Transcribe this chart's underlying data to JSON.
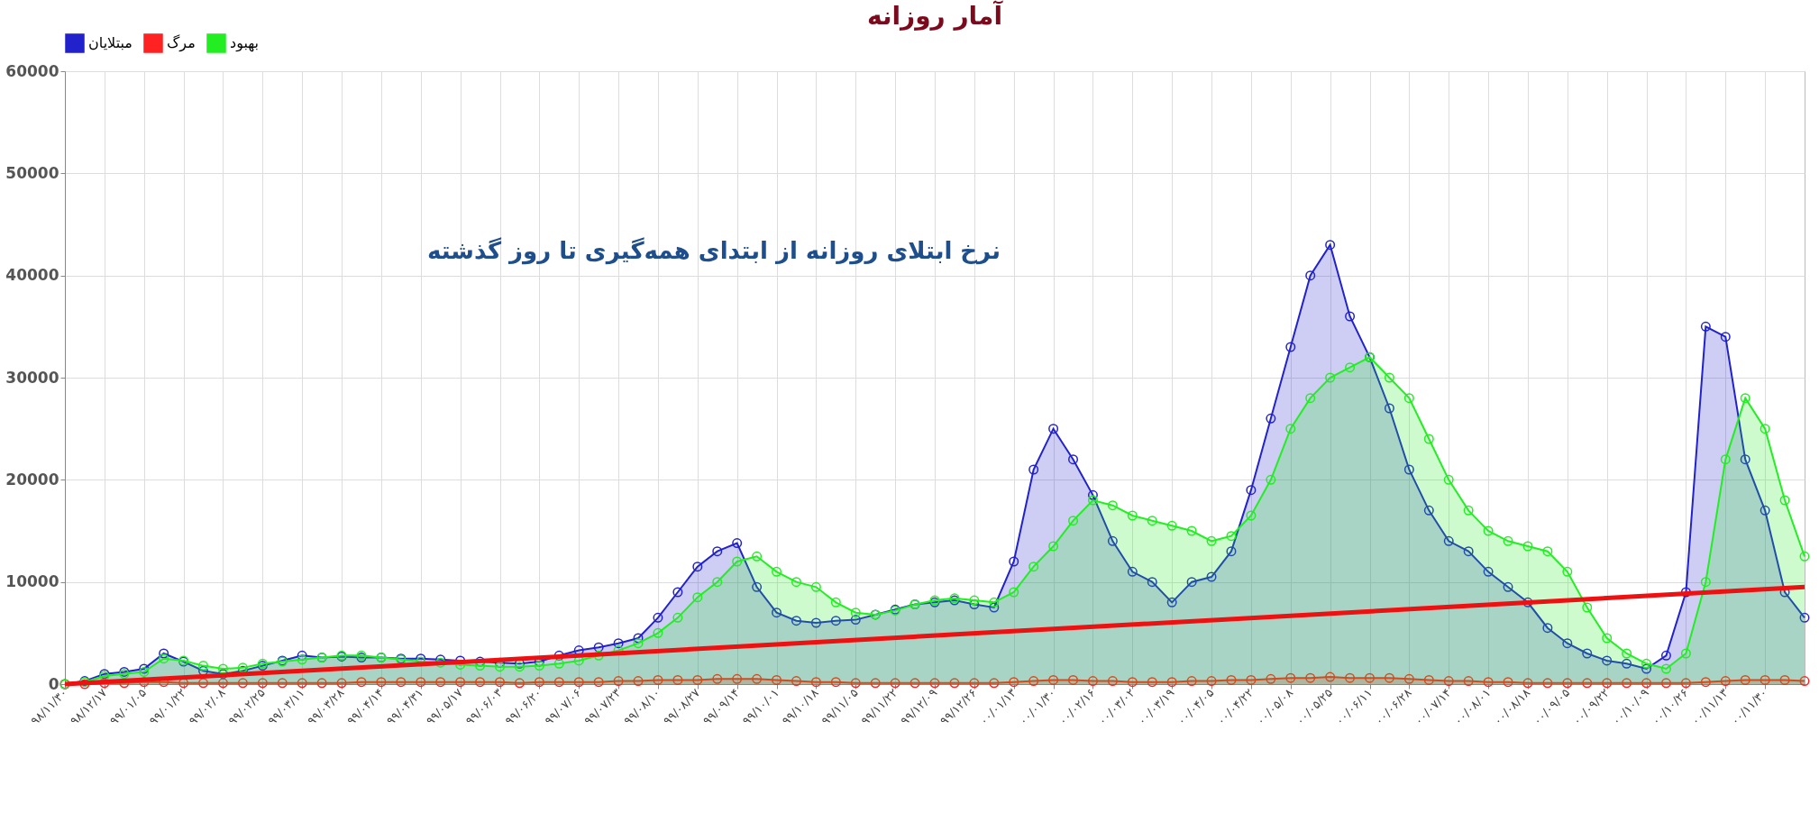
{
  "chart_data": {
    "type": "area",
    "title": "آمار روزانه",
    "annotations": [
      "نرخ ابتلای روزانه از ابتدای همه‌گیری تا روز گذشته"
    ],
    "categories": [
      "۹۸/۱۱/۳۰",
      null,
      "۹۸/۱۲/۱۷",
      null,
      "۹۹/۰۱/۰۵",
      null,
      "۹۹/۰۱/۲۲",
      null,
      "۹۹/۰۲/۰۸",
      null,
      "۹۹/۰۲/۲۵",
      null,
      "۹۹/۰۳/۱۱",
      null,
      "۹۹/۰۳/۲۸",
      null,
      "۹۹/۰۴/۱۴",
      null,
      "۹۹/۰۴/۳۱",
      null,
      "۹۹/۰۵/۱۷",
      null,
      "۹۹/۰۶/۰۳",
      null,
      "۹۹/۰۶/۲۰",
      null,
      "۹۹/۰۷/۰۶",
      null,
      "۹۹/۰۷/۲۳",
      null,
      "۹۹/۰۸/۱۰",
      null,
      "۹۹/۰۸/۲۷",
      null,
      "۹۹/۰۹/۱۴",
      null,
      "۹۹/۱۰/۰۱",
      null,
      "۹۹/۱۰/۱۸",
      null,
      "۹۹/۱۱/۰۵",
      null,
      "۹۹/۱۱/۲۲",
      null,
      "۹۹/۱۲/۰۹",
      null,
      "۹۹/۱۲/۲۶",
      null,
      "۰۰/۰۱/۱۳",
      null,
      "۰۰/۰۱/۳۰",
      null,
      "۰۰/۰۲/۱۶",
      null,
      "۰۰/۰۳/۰۲",
      null,
      "۰۰/۰۳/۱۹",
      null,
      "۰۰/۰۴/۰۵",
      null,
      "۰۰/۰۴/۲۲",
      null,
      "۰۰/۰۵/۰۸",
      null,
      "۰۰/۰۵/۲۵",
      null,
      "۰۰/۰۶/۱۱",
      null,
      "۰۰/۰۶/۲۸",
      null,
      "۰۰/۰۷/۱۴",
      null,
      "۰۰/۰۸/۰۱",
      null,
      "۰۰/۰۸/۱۸",
      null,
      "۰۰/۰۹/۰۵",
      null,
      "۰۰/۰۹/۲۲",
      null,
      "۰۰/۱۰/۰۹",
      null,
      "۰۰/۱۰/۲۶",
      null,
      "۰۰/۱۱/۱۳",
      null,
      "۰۰/۱۱/۳۰",
      null,
      null
    ],
    "series": [
      {
        "name": "مبتلایان",
        "color": "#2222cc",
        "values": [
          0,
          300,
          1000,
          1200,
          1500,
          3000,
          2200,
          1300,
          1000,
          1300,
          1800,
          2300,
          2800,
          2600,
          2700,
          2600,
          2600,
          2500,
          2500,
          2400,
          2300,
          2200,
          2100,
          2000,
          2200,
          2800,
          3300,
          3600,
          4000,
          4500,
          6500,
          9000,
          11500,
          13000,
          13800,
          9500,
          7000,
          6200,
          6000,
          6200,
          6300,
          6800,
          7300,
          7800,
          8000,
          8200,
          7800,
          7500,
          12000,
          21000,
          25000,
          22000,
          18500,
          14000,
          11000,
          10000,
          8000,
          10000,
          10500,
          13000,
          19000,
          26000,
          33000,
          40000,
          43000,
          36000,
          32000,
          27000,
          21000,
          17000,
          14000,
          13000,
          11000,
          9500,
          8000,
          5500,
          4000,
          3000,
          2300,
          2000,
          1500,
          2800,
          9000,
          35000,
          34000,
          22000,
          17000,
          9000,
          6500
        ]
      },
      {
        "name": "مرگ",
        "color": "#ff2222",
        "values": [
          0,
          0,
          100,
          100,
          200,
          200,
          100,
          100,
          100,
          100,
          100,
          100,
          100,
          100,
          100,
          200,
          200,
          200,
          200,
          200,
          200,
          200,
          200,
          100,
          200,
          200,
          200,
          200,
          300,
          300,
          400,
          400,
          400,
          500,
          500,
          500,
          400,
          300,
          200,
          200,
          100,
          100,
          100,
          100,
          100,
          100,
          100,
          100,
          200,
          300,
          400,
          400,
          300,
          300,
          200,
          200,
          200,
          300,
          300,
          400,
          400,
          500,
          600,
          600,
          700,
          600,
          600,
          600,
          500,
          400,
          300,
          300,
          200,
          200,
          100,
          100,
          100,
          100,
          100,
          100,
          100,
          100,
          100,
          200,
          300,
          400,
          400,
          400,
          300
        ]
      },
      {
        "name": "بهبود",
        "color": "#22ee22",
        "values": [
          0,
          200,
          800,
          1000,
          1200,
          2500,
          2300,
          1800,
          1500,
          1600,
          2000,
          2200,
          2400,
          2600,
          2800,
          2800,
          2600,
          2400,
          2200,
          2100,
          1900,
          1800,
          1700,
          1700,
          1800,
          2000,
          2300,
          2800,
          3300,
          4000,
          5000,
          6500,
          8500,
          10000,
          12000,
          12500,
          11000,
          10000,
          9500,
          8000,
          7000,
          6800,
          7200,
          7800,
          8200,
          8400,
          8200,
          8000,
          9000,
          11500,
          13500,
          16000,
          18000,
          17500,
          16500,
          16000,
          15500,
          15000,
          14000,
          14500,
          16500,
          20000,
          25000,
          28000,
          30000,
          31000,
          32000,
          30000,
          28000,
          24000,
          20000,
          17000,
          15000,
          14000,
          13500,
          13000,
          11000,
          7500,
          4500,
          3000,
          2000,
          1500,
          3000,
          10000,
          22000,
          28000,
          25000,
          18000,
          12500
        ]
      },
      {
        "type": "line",
        "marker": "none",
        "color": "#ee1111",
        "values": [
          0,
          null,
          null,
          null,
          null,
          null,
          null,
          null,
          null,
          null,
          null,
          null,
          null,
          null,
          null,
          null,
          null,
          null,
          null,
          null,
          null,
          null,
          null,
          null,
          null,
          null,
          null,
          null,
          null,
          null,
          null,
          null,
          null,
          null,
          null,
          null,
          null,
          null,
          null,
          null,
          null,
          null,
          null,
          null,
          null,
          null,
          null,
          null,
          null,
          null,
          null,
          null,
          null,
          null,
          null,
          null,
          null,
          null,
          null,
          null,
          null,
          null,
          null,
          null,
          null,
          null,
          null,
          null,
          null,
          null,
          null,
          null,
          null,
          null,
          null,
          null,
          null,
          null,
          null,
          null,
          null,
          null,
          null,
          null,
          null,
          null,
          null,
          null,
          9500
        ]
      }
    ],
    "ylim": [
      0,
      60000
    ],
    "yticks": [
      0,
      10000,
      20000,
      30000,
      40000,
      50000,
      60000
    ],
    "grid": true,
    "legend": "top",
    "marker": "circle"
  }
}
